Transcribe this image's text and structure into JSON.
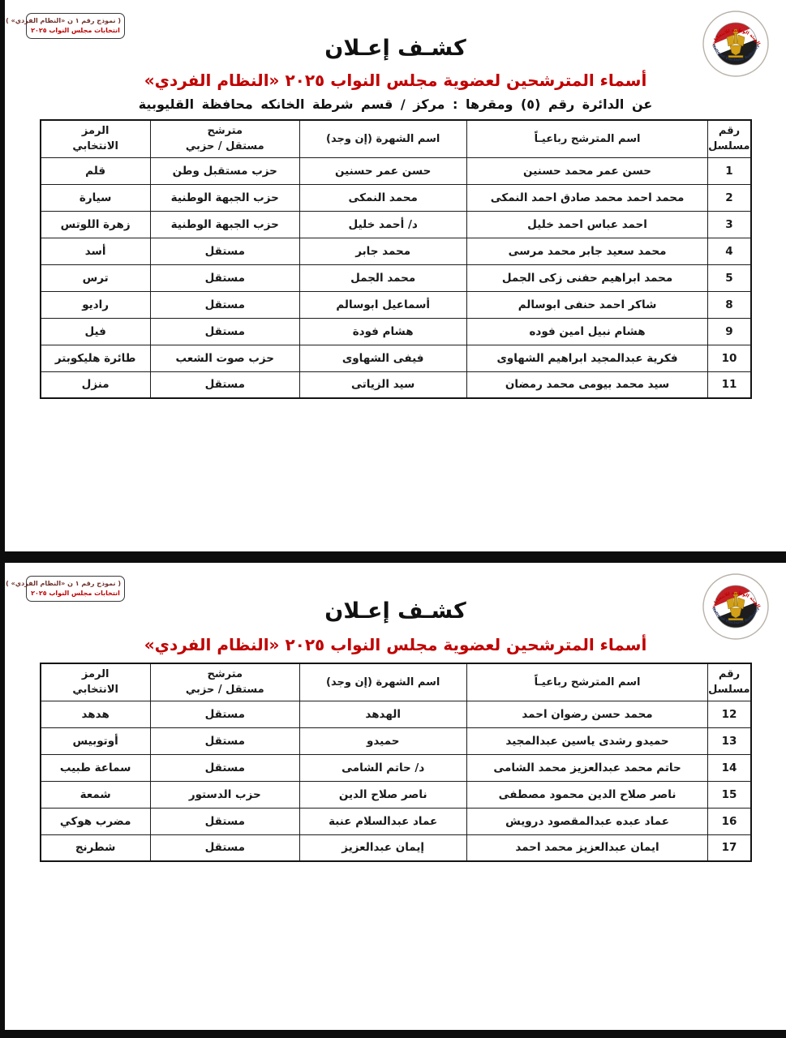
{
  "accent_colors": {
    "red": "#c00000",
    "black": "#1a1a1a",
    "gold": "#d4a017"
  },
  "logo": {
    "name": "national-elections-authority-emblem",
    "top_arc_text": "الهيئة الوطنية للانتخابات",
    "bottom_arc_text": "National Elections Authority"
  },
  "pages": [
    {
      "stamp": {
        "line1": "( نموذج رقم ١ ن «النظام الفردي» )",
        "line2": "انتخابات مجلس النواب ٢٠٢٥"
      },
      "title": "كشـف إعـلان",
      "subtitle": "أسماء المترشحين لعضوية مجلس النواب ٢٠٢٥ «النظام الفردي»",
      "district_line": "عن الدائرة رقم (٥)   ومقرها : مركز / قسم شرطة الخانكه   محافظة القليوبية",
      "table": {
        "headers": [
          "رقم\nمسلسل",
          "اسم المترشح رباعيـاً",
          "اسم الشهرة (إن وجد)",
          "مترشح\nمستقل / حزبي",
          "الرمز\nالانتخابي"
        ],
        "rows": [
          [
            "1",
            "حسن عمر محمد حسنين",
            "حسن عمر حسنين",
            "حزب مستقبل وطن",
            "قلم"
          ],
          [
            "2",
            "محمد احمد محمد صادق احمد النمكى",
            "محمد النمكى",
            "حزب الجبهة الوطنية",
            "سيارة"
          ],
          [
            "3",
            "احمد عباس احمد خليل",
            "د/ أحمد خليل",
            "حزب الجبهة الوطنية",
            "زهرة اللوتس"
          ],
          [
            "4",
            "محمد سعيد جابر محمد مرسى",
            "محمد جابر",
            "مستقل",
            "أسد"
          ],
          [
            "5",
            "محمد ابراهيم حفنى زكى الجمل",
            "محمد الجمل",
            "مستقل",
            "ترس"
          ],
          [
            "8",
            "شاكر احمد حنفى ابوسالم",
            "أسماعيل ابوسالم",
            "مستقل",
            "راديو"
          ],
          [
            "9",
            "هشام نبيل امين فوده",
            "هشام فودة",
            "مستقل",
            "فيل"
          ],
          [
            "10",
            "فكرية عبدالمجيد ابراهيم الشهاوى",
            "فيفى الشهاوى",
            "حزب صوت الشعب",
            "طائرة هليكوبتر"
          ],
          [
            "11",
            "سيد محمد بيومى محمد رمضان",
            "سيد الزياتى",
            "مستقل",
            "منزل"
          ]
        ]
      }
    },
    {
      "stamp": {
        "line1": "( نموذج رقم ١ ن «النظام الفردي» )",
        "line2": "انتخابات مجلس النواب ٢٠٢٥"
      },
      "title": "كشـف إعـلان",
      "subtitle": "أسماء المترشحين لعضوية مجلس النواب ٢٠٢٥ «النظام الفردي»",
      "table": {
        "headers": [
          "رقم\nمسلسل",
          "اسم المترشح رباعيـاً",
          "اسم الشهرة (إن وجد)",
          "مترشح\nمستقل / حزبي",
          "الرمز\nالانتخابي"
        ],
        "rows": [
          [
            "12",
            "محمد حسن رضوان احمد",
            "الهدهد",
            "مستقل",
            "هدهد"
          ],
          [
            "13",
            "حميدو رشدى ياسين عبدالمجيد",
            "حميدو",
            "مستقل",
            "أوتوبيس"
          ],
          [
            "14",
            "حاتم محمد عبدالعزيز محمد الشامى",
            "د/ حاتم الشامى",
            "مستقل",
            "سماعة طبيب"
          ],
          [
            "15",
            "ناصر صلاح الدين محمود مصطفى",
            "ناصر صلاح الدين",
            "حزب الدستور",
            "شمعة"
          ],
          [
            "16",
            "عماد عبده عبدالمقصود درويش",
            "عماد عبدالسلام عنبة",
            "مستقل",
            "مضرب هوكي"
          ],
          [
            "17",
            "ايمان عبدالعزيز محمد احمد",
            "إيمان عبدالعزيز",
            "مستقل",
            "شطرنج"
          ]
        ]
      }
    }
  ]
}
